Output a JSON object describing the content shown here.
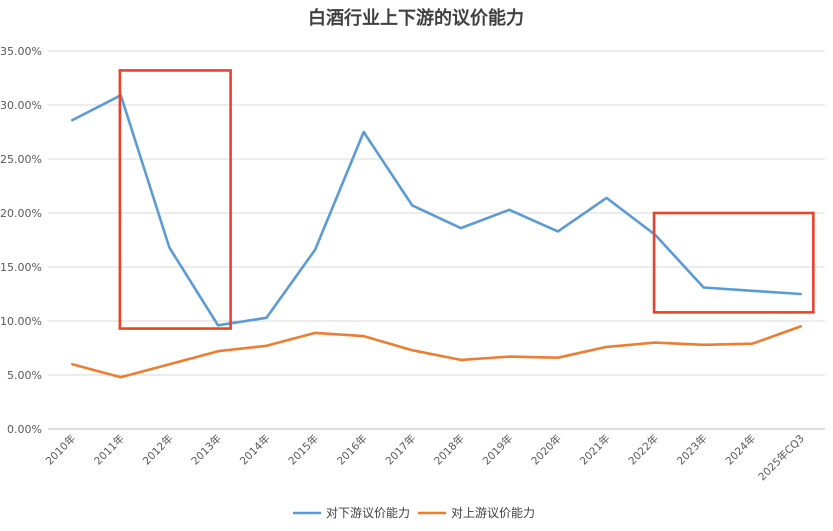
{
  "chart_data": {
    "type": "line",
    "title": "白酒行业上下游的议价能力",
    "xlabel": "",
    "ylabel": "",
    "categories": [
      "2010年",
      "2011年",
      "2012年",
      "2013年",
      "2014年",
      "2015年",
      "2016年",
      "2017年",
      "2018年",
      "2019年",
      "2020年",
      "2021年",
      "2022年",
      "2023年",
      "2024年",
      "2025年CQ3"
    ],
    "y_tick_labels": [
      "0.00%",
      "5.00%",
      "10.00%",
      "15.00%",
      "20.00%",
      "25.00%",
      "30.00%",
      "35.00%"
    ],
    "ylim": [
      0,
      35
    ],
    "y_unit": "%",
    "grid": true,
    "legend_position": "bottom",
    "series": [
      {
        "name": "对下游议价能力",
        "color": "#5B9BD5",
        "values": [
          28.6,
          30.9,
          16.8,
          9.6,
          10.3,
          16.6,
          27.5,
          20.7,
          18.6,
          20.3,
          18.3,
          21.4,
          18.0,
          13.1,
          12.8,
          12.5
        ]
      },
      {
        "name": "对上游议价能力",
        "color": "#ED7D31",
        "values": [
          6.0,
          4.8,
          6.0,
          7.2,
          7.7,
          8.9,
          8.6,
          7.3,
          6.4,
          6.7,
          6.6,
          7.6,
          8.0,
          7.8,
          7.9,
          9.5
        ]
      }
    ],
    "annotations": [
      {
        "type": "highlight-box",
        "color": "#E8432A",
        "x_from": "2011年",
        "x_to": "2013年",
        "y_from": 9.3,
        "y_to": 33.2
      },
      {
        "type": "highlight-box",
        "color": "#E8432A",
        "x_from": "2022年",
        "x_to": "2025年CQ3",
        "y_from": 10.8,
        "y_to": 20.0
      }
    ]
  }
}
